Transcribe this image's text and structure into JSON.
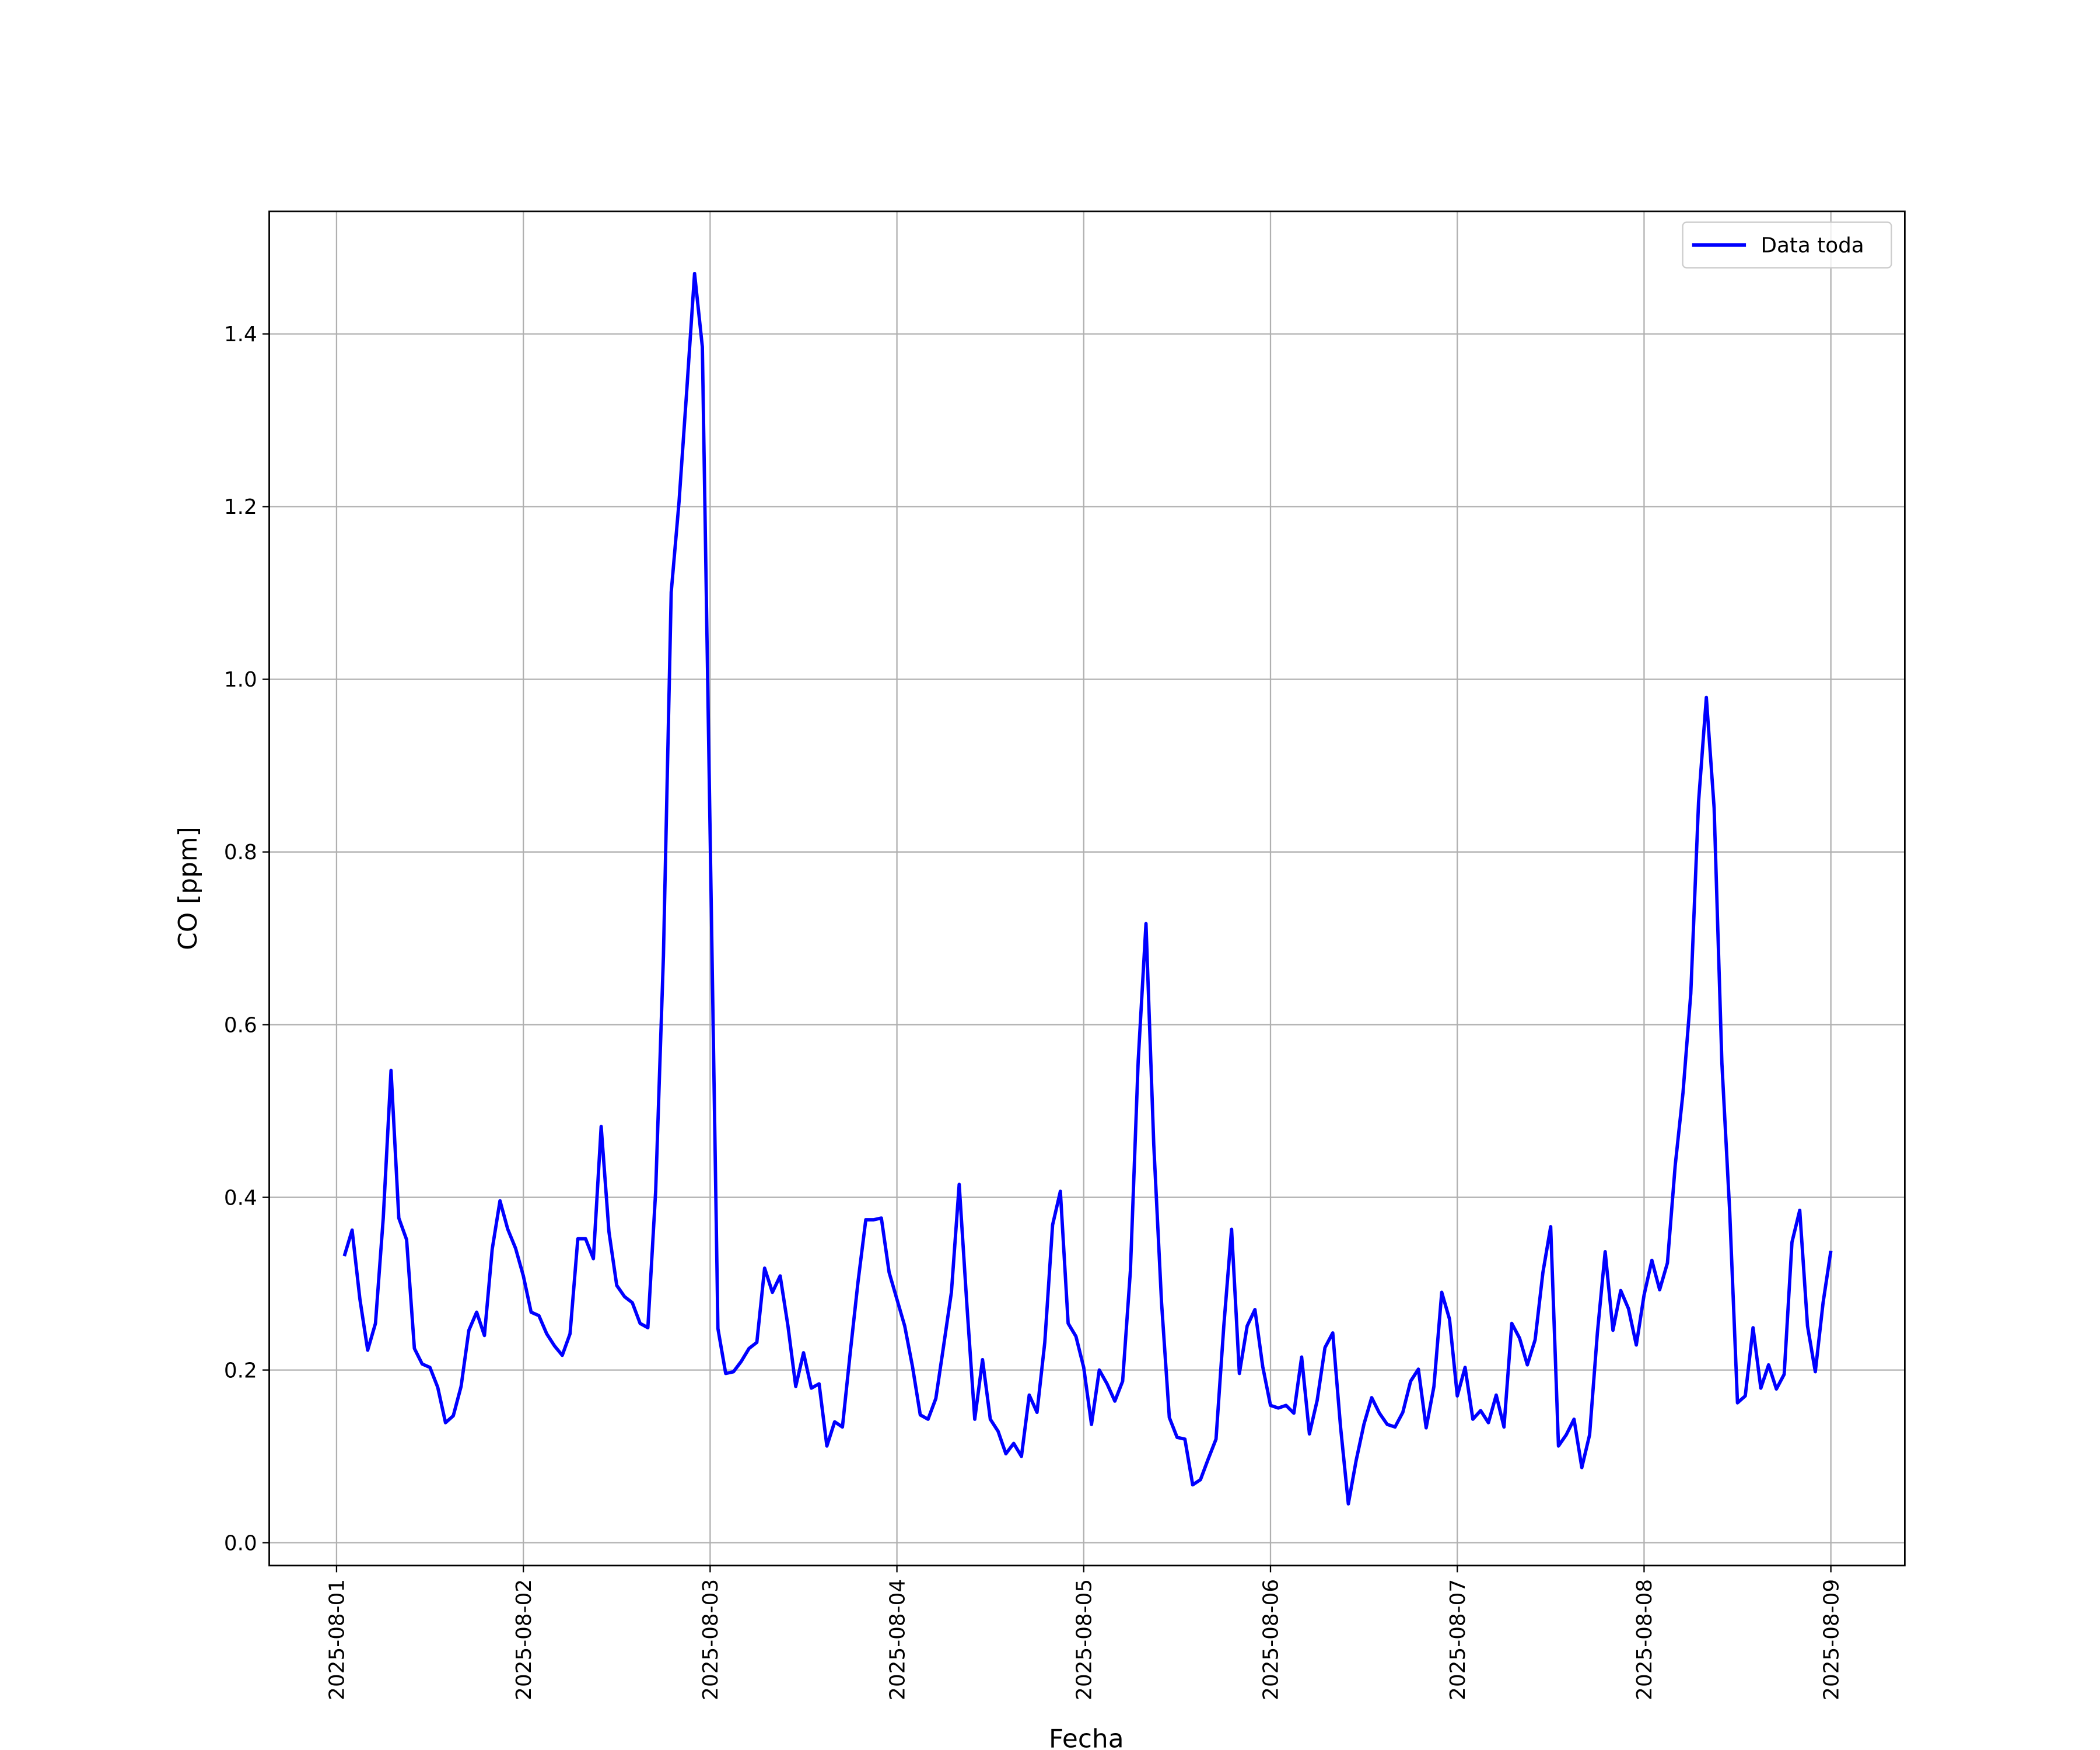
{
  "chart_data": {
    "type": "line",
    "xlabel": "Fecha",
    "ylabel": "CO [ppm]",
    "x": [
      1,
      2,
      3,
      4,
      5,
      6,
      7,
      8,
      9,
      10,
      11,
      12,
      13,
      14,
      15,
      16,
      17,
      18,
      19,
      20,
      21,
      22,
      23,
      24,
      25,
      26,
      27,
      28,
      29,
      30,
      31,
      32,
      33,
      34,
      35,
      36,
      37,
      38,
      39,
      40,
      41,
      42,
      43,
      44,
      45,
      46,
      47,
      48,
      49,
      50,
      51,
      52,
      53,
      54,
      55,
      56,
      57,
      58,
      59,
      60,
      61,
      62,
      63,
      64,
      65,
      66,
      67,
      68,
      69,
      70,
      71,
      72,
      73,
      74,
      75,
      76,
      77,
      78,
      79,
      80,
      81,
      82,
      83,
      84,
      85,
      86,
      87,
      88,
      89,
      90,
      91,
      92,
      93,
      94,
      95,
      96,
      97,
      98,
      99,
      100,
      101,
      102,
      103,
      104,
      105,
      106,
      107,
      108,
      109,
      110,
      111,
      112,
      113,
      114,
      115,
      116,
      117,
      118,
      119,
      120,
      121,
      122,
      123,
      124,
      125,
      126,
      127,
      128,
      129,
      130,
      131,
      132,
      133,
      134,
      135,
      136,
      137,
      138,
      139,
      140,
      141,
      142,
      143,
      144,
      145,
      146,
      147,
      148,
      149,
      150,
      151,
      152,
      153,
      154,
      155,
      156,
      157,
      158,
      159,
      160,
      161,
      162,
      163,
      164,
      165,
      166,
      167,
      168,
      169,
      170,
      171,
      172,
      173,
      174,
      175,
      176,
      177,
      178,
      179,
      180,
      181,
      182,
      183,
      184,
      185,
      186,
      187,
      188,
      189,
      190,
      191,
      192
    ],
    "series": [
      {
        "name": "Data toda",
        "color": "#0000ff",
        "values": [
          0.332,
          0.362,
          0.282,
          0.223,
          0.254,
          0.376,
          0.547,
          0.376,
          0.351,
          0.225,
          0.207,
          0.203,
          0.18,
          0.139,
          0.147,
          0.181,
          0.246,
          0.267,
          0.24,
          0.34,
          0.396,
          0.363,
          0.341,
          0.309,
          0.267,
          0.263,
          0.242,
          0.228,
          0.217,
          0.242,
          0.352,
          0.352,
          0.329,
          0.482,
          0.36,
          0.298,
          0.285,
          0.278,
          0.254,
          0.249,
          0.407,
          0.68,
          1.101,
          1.205,
          1.335,
          1.47,
          1.385,
          0.82,
          0.248,
          0.196,
          0.198,
          0.21,
          0.225,
          0.232,
          0.318,
          0.29,
          0.309,
          0.251,
          0.181,
          0.22,
          0.179,
          0.184,
          0.112,
          0.14,
          0.134,
          0.22,
          0.302,
          0.374,
          0.374,
          0.376,
          0.313,
          0.282,
          0.251,
          0.204,
          0.148,
          0.143,
          0.167,
          0.228,
          0.29,
          0.415,
          0.274,
          0.143,
          0.212,
          0.143,
          0.129,
          0.103,
          0.115,
          0.1,
          0.171,
          0.151,
          0.232,
          0.368,
          0.407,
          0.254,
          0.239,
          0.203,
          0.137,
          0.2,
          0.184,
          0.164,
          0.187,
          0.315,
          0.558,
          0.717,
          0.461,
          0.278,
          0.145,
          0.122,
          0.12,
          0.067,
          0.073,
          0.097,
          0.12,
          0.251,
          0.363,
          0.196,
          0.251,
          0.27,
          0.204,
          0.159,
          0.156,
          0.159,
          0.15,
          0.215,
          0.126,
          0.165,
          0.226,
          0.243,
          0.134,
          0.045,
          0.095,
          0.137,
          0.168,
          0.15,
          0.137,
          0.134,
          0.151,
          0.187,
          0.201,
          0.133,
          0.181,
          0.29,
          0.259,
          0.17,
          0.203,
          0.143,
          0.153,
          0.139,
          0.171,
          0.134,
          0.254,
          0.237,
          0.206,
          0.235,
          0.313,
          0.366,
          0.112,
          0.125,
          0.143,
          0.087,
          0.125,
          0.243,
          0.337,
          0.246,
          0.292,
          0.271,
          0.229,
          0.287,
          0.327,
          0.293,
          0.324,
          0.437,
          0.521,
          0.636,
          0.858,
          0.979,
          0.851,
          0.555,
          0.384,
          0.162,
          0.17,
          0.249,
          0.179,
          0.206,
          0.178,
          0.195,
          0.348,
          0.385,
          0.251,
          0.198,
          0.278,
          0.338
        ]
      }
    ],
    "xlim": [
      -8.65,
      201.5
    ],
    "xticks": [
      {
        "value": 0,
        "label": "2025-08-01"
      },
      {
        "value": 24,
        "label": "2025-08-02"
      },
      {
        "value": 48,
        "label": "2025-08-03"
      },
      {
        "value": 72,
        "label": "2025-08-04"
      },
      {
        "value": 96,
        "label": "2025-08-05"
      },
      {
        "value": 120,
        "label": "2025-08-06"
      },
      {
        "value": 144,
        "label": "2025-08-07"
      },
      {
        "value": 168,
        "label": "2025-08-08"
      },
      {
        "value": 192,
        "label": "2025-08-09"
      }
    ],
    "ylim": [
      -0.0265,
      1.542
    ],
    "yticks": [
      {
        "value": 0,
        "label": "0.0"
      },
      0.2,
      0.4,
      0.6,
      0.8,
      {
        "value": 1,
        "label": "1.0"
      },
      1.2,
      1.4
    ],
    "grid": true,
    "legend": "upper right"
  }
}
